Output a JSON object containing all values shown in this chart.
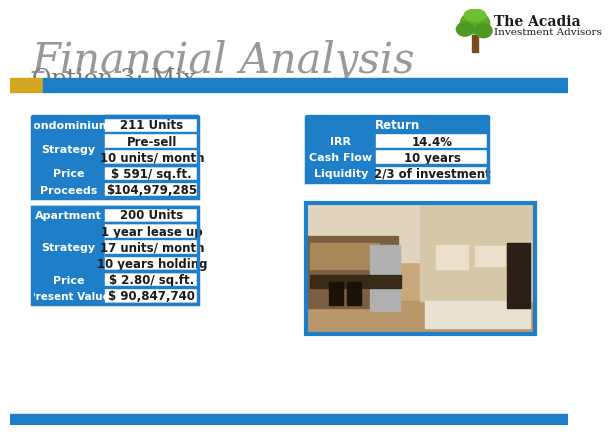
{
  "title_main": "Financial Analysis",
  "title_sub": "Option 3: Mix",
  "bg_color": "#FFFFFF",
  "blue": "#1E7EC8",
  "gold": "#D4A520",
  "black": "#1A1A1A",
  "white": "#FFFFFF",
  "title_color": "#888888",
  "subtitle_color": "#666666",
  "condo_table": {
    "header": [
      "Condominium",
      "211 Units"
    ],
    "rows": [
      {
        "left": "Strategy",
        "right": [
          "Pre-sell",
          "10 units/ month"
        ],
        "merged_left": true
      },
      {
        "left": "Price",
        "right": [
          "$ 591/ sq.ft."
        ],
        "merged_left": false
      },
      {
        "left": "Proceeds",
        "right": [
          "$104,979,285"
        ],
        "merged_left": false
      }
    ]
  },
  "return_table": {
    "header": "Return",
    "rows": [
      [
        "IRR",
        "14.4%"
      ],
      [
        "Cash Flow",
        "10 years"
      ],
      [
        "Liquidity",
        "2/3 of investment"
      ]
    ]
  },
  "apt_table": {
    "header": [
      "Apartment",
      "200 Units"
    ],
    "rows": [
      {
        "left": "Strategy",
        "right": [
          "1 year lease up",
          "17 units/ month",
          "10 years holding"
        ],
        "merged_left": true
      },
      {
        "left": "Price",
        "right": [
          "$ 2.80/ sq.ft."
        ],
        "merged_left": false
      },
      {
        "left": "Present Value",
        "right": [
          "$ 90,847,740"
        ],
        "merged_left": false
      }
    ]
  }
}
